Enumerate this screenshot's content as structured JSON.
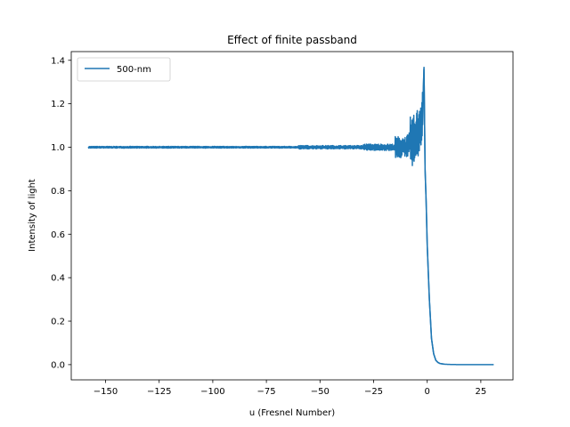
{
  "chart_data": {
    "type": "line",
    "title": "Effect of finite passband",
    "xlabel": "u (Fresnel Number)",
    "ylabel": "Intensity of light",
    "xlim": [
      -166,
      40
    ],
    "ylim": [
      -0.07,
      1.44
    ],
    "x_ticks": [
      -150,
      -125,
      -100,
      -75,
      -50,
      -25,
      0,
      25
    ],
    "x_tick_labels": [
      "−150",
      "−125",
      "−100",
      "−75",
      "−50",
      "−25",
      "0",
      "25"
    ],
    "y_ticks": [
      0.0,
      0.2,
      0.4,
      0.6,
      0.8,
      1.0,
      1.2,
      1.4
    ],
    "y_tick_labels": [
      "0.0",
      "0.2",
      "0.4",
      "0.6",
      "0.8",
      "1.0",
      "1.2",
      "1.4"
    ],
    "grid": false,
    "legend_position": "top-left",
    "series": [
      {
        "name": "500-nm",
        "color": "#1f77b4",
        "x": [
          -158,
          -150,
          -140,
          -130,
          -120,
          -110,
          -100,
          -90,
          -80,
          -70,
          -60,
          -50,
          -45,
          -40,
          -35,
          -30,
          -25,
          -20,
          -15,
          -12,
          -10,
          -8,
          -6,
          -5,
          -4,
          -3,
          -2,
          -1.5,
          -1,
          -0.5,
          0,
          1,
          2,
          3,
          4,
          5,
          6,
          8,
          10,
          15,
          20,
          25,
          31
        ],
        "values": [
          1.0,
          1.0,
          1.0,
          1.0,
          1.0,
          1.0,
          1.0,
          1.0,
          1.0,
          1.0,
          1.0,
          1.0,
          1.0,
          1.0,
          1.0,
          1.0,
          1.0,
          1.0,
          1.0,
          1.0,
          1.0,
          1.02,
          1.03,
          1.05,
          1.07,
          1.1,
          1.2,
          1.37,
          0.9,
          0.75,
          0.55,
          0.3,
          0.12,
          0.05,
          0.02,
          0.01,
          0.005,
          0.002,
          0.001,
          0.0,
          0.0,
          0.0,
          0.0
        ],
        "oscillation": [
          {
            "x_start": -158,
            "x_end": -60,
            "amplitude": 0.004
          },
          {
            "x_start": -60,
            "x_end": -30,
            "amplitude": 0.008
          },
          {
            "x_start": -30,
            "x_end": -15,
            "amplitude": 0.015
          },
          {
            "x_start": -15,
            "x_end": -8,
            "amplitude": 0.05
          },
          {
            "x_start": -8,
            "x_end": -2,
            "amplitude": 0.12
          }
        ]
      }
    ]
  }
}
